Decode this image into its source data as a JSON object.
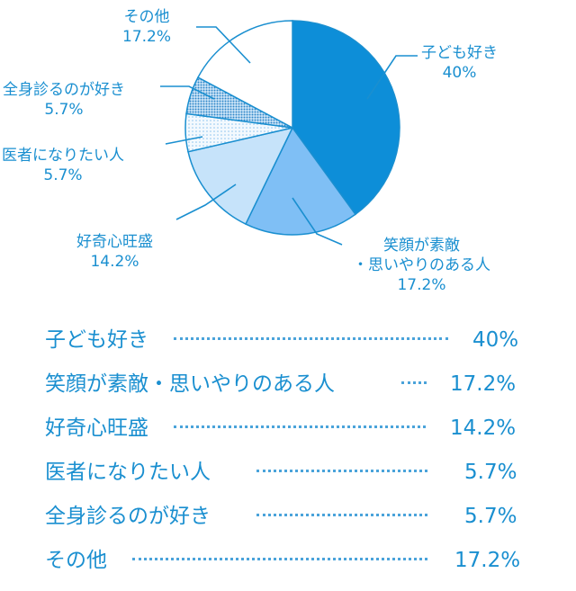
{
  "chart_data": {
    "type": "pie",
    "slices": [
      {
        "label": "子ども好き",
        "value": 40,
        "value_label": "40%",
        "color": "#0d8ed8"
      },
      {
        "label": "笑顔が素敵・思いやりのある人",
        "label_lines": [
          "笑顔が素敵",
          "・思いやりのある人"
        ],
        "value": 17.2,
        "value_label": "17.2%",
        "color": "#7fbff5"
      },
      {
        "label": "好奇心旺盛",
        "value": 14.2,
        "value_label": "14.2%",
        "color": "#c6e3fa"
      },
      {
        "label": "医者になりたい人",
        "value": 5.7,
        "value_label": "5.7%",
        "color": "#eef6fd",
        "pattern": "light-dots"
      },
      {
        "label": "全身診るのが好き",
        "value": 5.7,
        "value_label": "5.7%",
        "color": "#2f86c8",
        "pattern": "dense-dots"
      },
      {
        "label": "その他",
        "value": 17.2,
        "value_label": "17.2%",
        "color": "#ffffff"
      }
    ],
    "legend_placement": "bottom"
  },
  "list": [
    {
      "name": "子ども好き",
      "value": "40%"
    },
    {
      "name": "笑顔が素敵・思いやりのある人",
      "value": "17.2%"
    },
    {
      "name": "好奇心旺盛",
      "value": "14.2%"
    },
    {
      "name": "医者になりたい人",
      "value": "5.7%"
    },
    {
      "name": "全身診るのが好き",
      "value": "5.7%"
    },
    {
      "name": "その他",
      "value": "17.2%"
    }
  ],
  "colors": {
    "text": "#1a8fd0",
    "stroke": "#1a8fd0"
  }
}
